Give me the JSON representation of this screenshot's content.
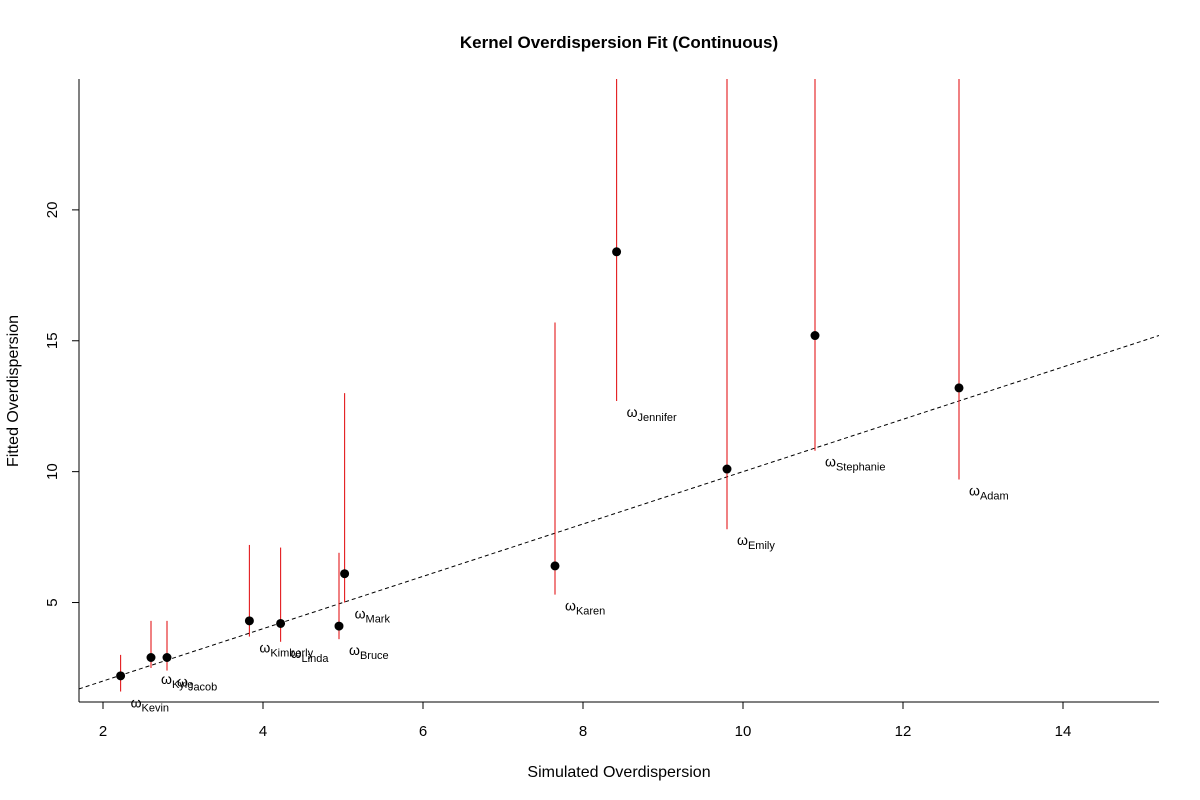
{
  "chart_data": {
    "type": "scatter",
    "title": "Kernel Overdispersion Fit (Continuous)",
    "xlabel": "Simulated Overdispersion",
    "ylabel": "Fitted Overdispersion",
    "xlim": [
      1.7,
      15.2
    ],
    "ylim": [
      1.2,
      25.0
    ],
    "xticks": [
      2,
      4,
      6,
      8,
      10,
      12,
      14
    ],
    "yticks": [
      5,
      10,
      15,
      20
    ],
    "reference_line": {
      "type": "identity",
      "style": "dashed",
      "color": "#000000"
    },
    "error_bar_color": "#e31a1c",
    "point_color": "#000000",
    "label_symbol": "ω",
    "grid": false,
    "points": [
      {
        "name": "Kevin",
        "x": 2.22,
        "y": 2.2,
        "lo": 1.6,
        "hi": 3.0
      },
      {
        "name": "Kyle",
        "x": 2.6,
        "y": 2.9,
        "lo": 2.5,
        "hi": 4.3
      },
      {
        "name": "Jacob",
        "x": 2.8,
        "y": 2.9,
        "lo": 2.4,
        "hi": 4.3
      },
      {
        "name": "Kimberly",
        "x": 3.83,
        "y": 4.3,
        "lo": 3.7,
        "hi": 7.2
      },
      {
        "name": "Linda",
        "x": 4.22,
        "y": 4.2,
        "lo": 3.5,
        "hi": 7.1
      },
      {
        "name": "Bruce",
        "x": 4.95,
        "y": 4.1,
        "lo": 3.6,
        "hi": 6.9
      },
      {
        "name": "Mark",
        "x": 5.02,
        "y": 6.1,
        "lo": 5.0,
        "hi": 13.0
      },
      {
        "name": "Karen",
        "x": 7.65,
        "y": 6.4,
        "lo": 5.3,
        "hi": 15.7
      },
      {
        "name": "Jennifer",
        "x": 8.42,
        "y": 18.4,
        "lo": 12.7,
        "hi": 25.0
      },
      {
        "name": "Emily",
        "x": 9.8,
        "y": 10.1,
        "lo": 7.8,
        "hi": 25.0
      },
      {
        "name": "Stephanie",
        "x": 10.9,
        "y": 15.2,
        "lo": 10.8,
        "hi": 25.0
      },
      {
        "name": "Adam",
        "x": 12.7,
        "y": 13.2,
        "lo": 9.7,
        "hi": 25.0
      }
    ]
  }
}
